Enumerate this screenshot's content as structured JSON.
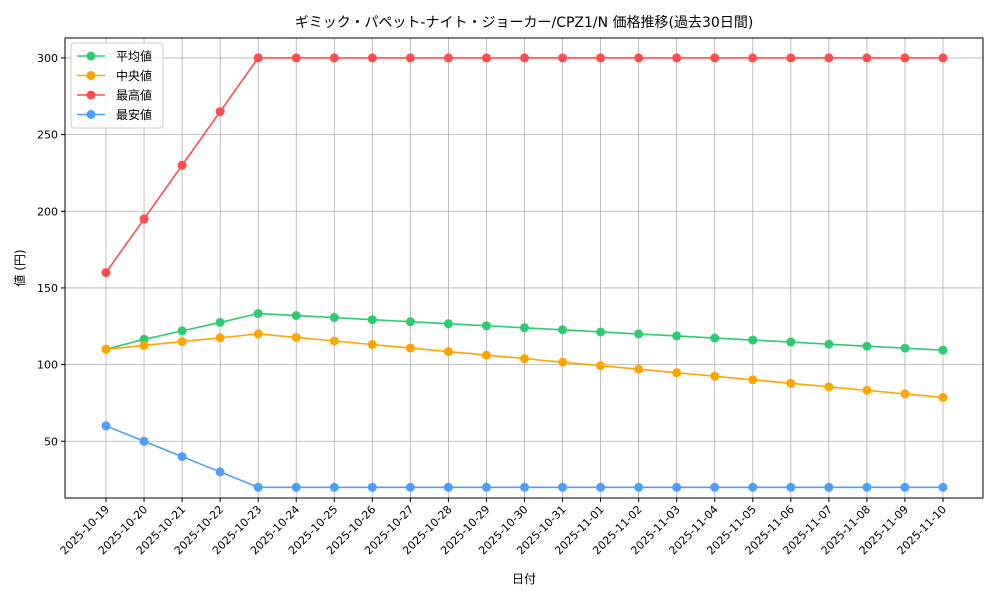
{
  "chart_data": {
    "type": "line",
    "title": "ギミック・パペット-ナイト・ジョーカー/CPZ1/N 価格推移(過去30日間)",
    "xlabel": "日付",
    "ylabel": "値 (円)",
    "ylim": [
      13,
      313
    ],
    "yticks": [
      50,
      100,
      150,
      200,
      250,
      300
    ],
    "grid": true,
    "legend_position": "top-left",
    "categories": [
      "2025-10-19",
      "2025-10-20",
      "2025-10-21",
      "2025-10-22",
      "2025-10-23",
      "2025-10-24",
      "2025-10-25",
      "2025-10-26",
      "2025-10-27",
      "2025-10-28",
      "2025-10-29",
      "2025-10-30",
      "2025-10-31",
      "2025-11-01",
      "2025-11-02",
      "2025-11-03",
      "2025-11-04",
      "2025-11-05",
      "2025-11-06",
      "2025-11-07",
      "2025-11-08",
      "2025-11-09",
      "2025-11-10"
    ],
    "series": [
      {
        "name": "平均値",
        "color": "#2ecc71",
        "values": [
          110,
          116.5,
          122,
          127.5,
          133.3,
          132,
          130.7,
          129.3,
          128,
          126.7,
          125.3,
          124,
          122.7,
          121.3,
          120,
          118.7,
          117.3,
          116,
          114.7,
          113.3,
          112,
          110.7,
          109.4
        ]
      },
      {
        "name": "中央値",
        "color": "#ffa500",
        "values": [
          110,
          112.5,
          115,
          117.5,
          120,
          117.7,
          115.4,
          113.1,
          110.8,
          108.5,
          106.2,
          103.9,
          101.6,
          99.3,
          97,
          94.7,
          92.4,
          90.1,
          87.8,
          85.5,
          83.2,
          80.9,
          78.6
        ]
      },
      {
        "name": "最高値",
        "color": "#ff4d4d",
        "values": [
          160,
          195,
          230,
          265,
          300,
          300,
          300,
          300,
          300,
          300,
          300,
          300,
          300,
          300,
          300,
          300,
          300,
          300,
          300,
          300,
          300,
          300,
          300
        ]
      },
      {
        "name": "最安値",
        "color": "#4d9fff",
        "values": [
          60,
          50,
          40,
          30,
          20,
          20,
          20,
          20,
          20,
          20,
          20,
          20,
          20,
          20,
          20,
          20,
          20,
          20,
          20,
          20,
          20,
          20,
          20
        ]
      }
    ]
  }
}
